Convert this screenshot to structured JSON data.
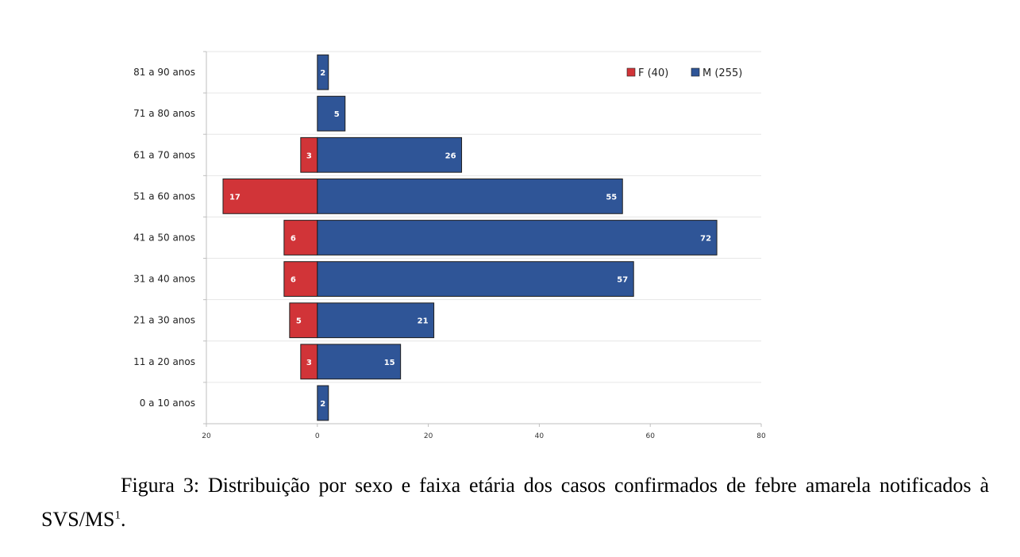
{
  "chart_data": {
    "type": "bar",
    "orientation": "horizontal",
    "stacking": "diverging",
    "categories": [
      "0 a 10 anos",
      "11 a 20 anos",
      "21 a 30 anos",
      "31 a 40 anos",
      "41 a 50 anos",
      "51 a 60 anos",
      "61 a 70 anos",
      "71 a 80 anos",
      "81 a 90 anos"
    ],
    "series": [
      {
        "name": "F (40)",
        "color": "#d13438",
        "direction": "left",
        "values": [
          0,
          3,
          5,
          6,
          6,
          17,
          3,
          0,
          0
        ]
      },
      {
        "name": "M (255)",
        "color": "#2f5597",
        "direction": "right",
        "values": [
          2,
          15,
          21,
          57,
          72,
          55,
          26,
          5,
          2
        ]
      }
    ],
    "xticks": [
      {
        "value": -20,
        "label": "20"
      },
      {
        "value": 0,
        "label": "0"
      },
      {
        "value": 20,
        "label": "20"
      },
      {
        "value": 40,
        "label": "40"
      },
      {
        "value": 60,
        "label": "60"
      },
      {
        "value": 80,
        "label": "80"
      }
    ],
    "xlim": [
      -20,
      80
    ],
    "grid": "horizontal",
    "legend": "top-right",
    "title": "",
    "xlabel": "",
    "ylabel": ""
  },
  "caption": {
    "text": "Figura 3: Distribuição por sexo e faixa etária dos casos confirmados de febre amarela notificados à SVS/MS",
    "superscript": "1",
    "suffix": "."
  }
}
